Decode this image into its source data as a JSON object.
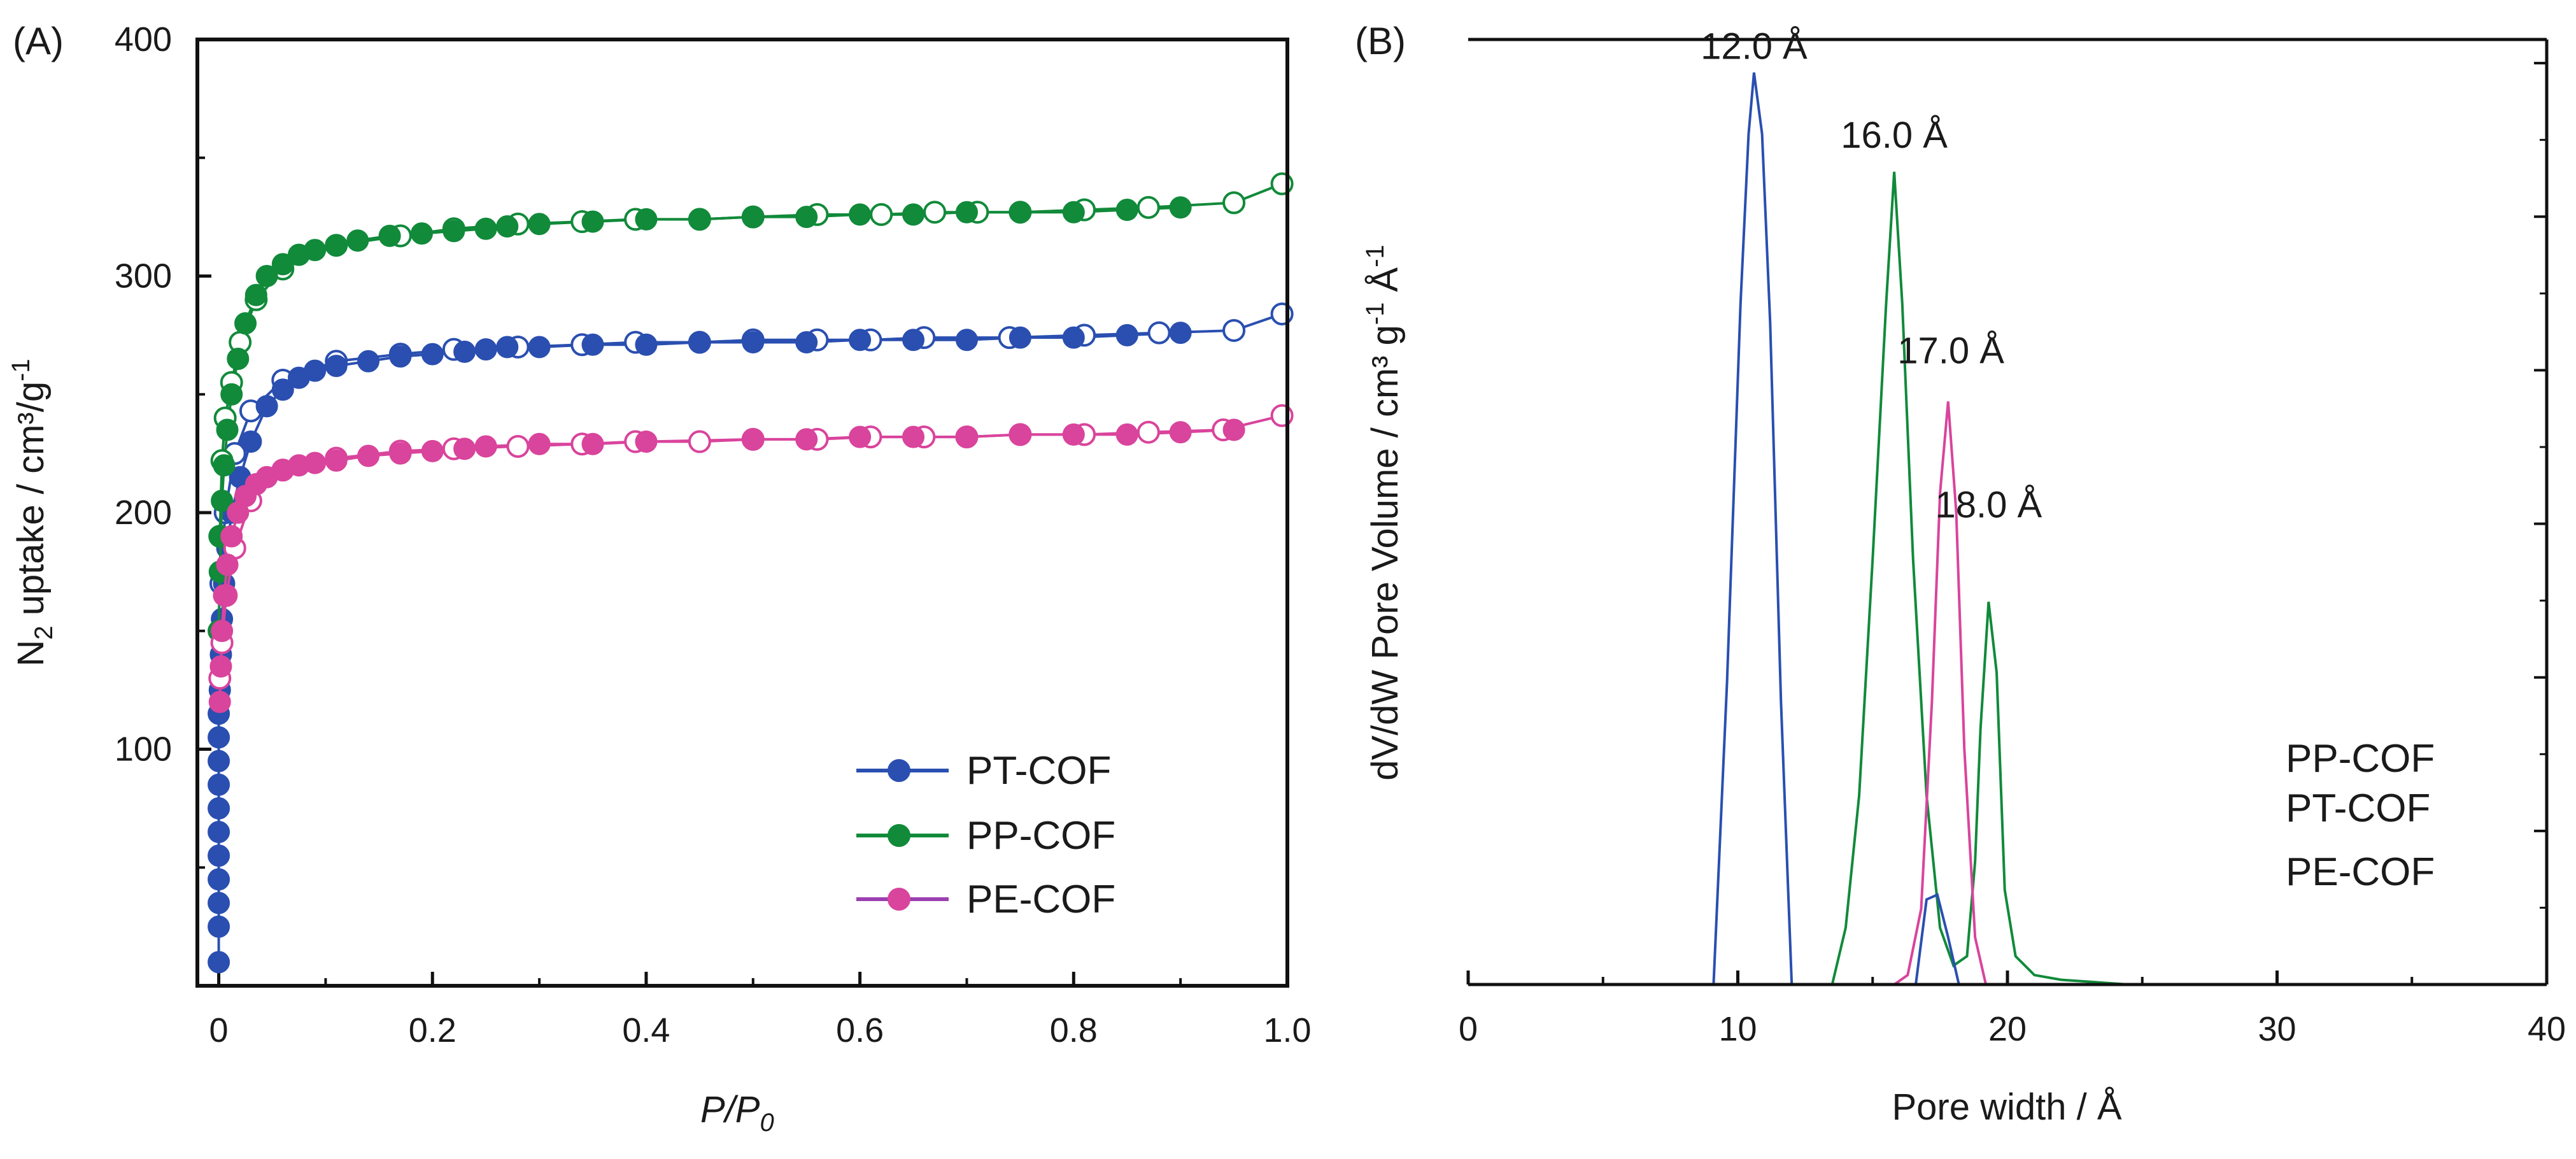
{
  "chart_data": [
    {
      "panel_label": "(A)",
      "type": "scatter",
      "xlabel": {
        "main": "P/P",
        "sub": "0"
      },
      "ylabel": {
        "main": "N",
        "sub": "2",
        "rest": " uptake / cm³/g",
        "sup": "-1"
      },
      "xlim": [
        -0.02,
        1.0
      ],
      "ylim": [
        0,
        400
      ],
      "xticks": [
        0,
        0.2,
        0.4,
        0.6,
        0.8,
        1.0
      ],
      "xtick_labels": [
        "0",
        "0.2",
        "0.4",
        "0.6",
        "0.8",
        "1.0"
      ],
      "yticks": [
        100,
        200,
        300,
        400
      ],
      "ytick_labels": [
        "100",
        "200",
        "300",
        "400"
      ],
      "legend_position": "bottom-right",
      "series": [
        {
          "name": "PT-COF",
          "color": "#2a4fb0",
          "adsorption": {
            "x": [
              0.0,
              0.0,
              0.0,
              0.0,
              0.0,
              0.0,
              0.0,
              0.0,
              0.0,
              0.0,
              0.0,
              0.001,
              0.002,
              0.003,
              0.005,
              0.008,
              0.012,
              0.02,
              0.03,
              0.045,
              0.06,
              0.075,
              0.09,
              0.11,
              0.14,
              0.17,
              0.2,
              0.23,
              0.25,
              0.27,
              0.3,
              0.35,
              0.4,
              0.45,
              0.5,
              0.55,
              0.6,
              0.65,
              0.7,
              0.75,
              0.8,
              0.85,
              0.9
            ],
            "y": [
              10,
              25,
              35,
              45,
              55,
              65,
              75,
              85,
              95,
              105,
              115,
              125,
              140,
              155,
              170,
              185,
              200,
              215,
              230,
              245,
              252,
              257,
              260,
              262,
              264,
              266,
              267,
              268,
              269,
              270,
              270,
              271,
              271,
              272,
              272,
              272,
              273,
              273,
              273,
              274,
              274,
              275,
              276
            ]
          },
          "desorption": {
            "x": [
              0.995,
              0.95,
              0.88,
              0.81,
              0.74,
              0.66,
              0.61,
              0.56,
              0.5,
              0.45,
              0.39,
              0.34,
              0.28,
              0.22,
              0.17,
              0.11,
              0.06,
              0.03,
              0.015,
              0.006,
              0.002
            ],
            "y": [
              284,
              277,
              276,
              275,
              274,
              274,
              273,
              273,
              273,
              272,
              272,
              271,
              270,
              269,
              267,
              264,
              256,
              243,
              225,
              200,
              170
            ]
          }
        },
        {
          "name": "PP-COF",
          "color": "#118a3a",
          "adsorption": {
            "x": [
              0.0,
              0.001,
              0.002,
              0.003,
              0.005,
              0.008,
              0.012,
              0.018,
              0.025,
              0.035,
              0.045,
              0.06,
              0.075,
              0.09,
              0.11,
              0.13,
              0.16,
              0.19,
              0.22,
              0.25,
              0.27,
              0.3,
              0.35,
              0.4,
              0.45,
              0.5,
              0.55,
              0.6,
              0.65,
              0.7,
              0.75,
              0.8,
              0.85,
              0.9
            ],
            "y": [
              150,
              175,
              190,
              205,
              220,
              235,
              250,
              265,
              280,
              292,
              300,
              305,
              309,
              311,
              313,
              315,
              317,
              318,
              319,
              320,
              321,
              322,
              323,
              324,
              324,
              325,
              325,
              326,
              326,
              327,
              327,
              327,
              328,
              329
            ]
          },
          "desorption": {
            "x": [
              0.995,
              0.95,
              0.87,
              0.81,
              0.75,
              0.71,
              0.67,
              0.62,
              0.56,
              0.5,
              0.45,
              0.39,
              0.34,
              0.28,
              0.22,
              0.17,
              0.11,
              0.06,
              0.035,
              0.02,
              0.012,
              0.006,
              0.003,
              0.001
            ],
            "y": [
              339,
              331,
              329,
              328,
              327,
              327,
              327,
              326,
              326,
              325,
              324,
              324,
              323,
              322,
              320,
              317,
              313,
              303,
              290,
              272,
              255,
              240,
              222,
              190
            ]
          }
        },
        {
          "name": "PE-COF",
          "color": "#d9449c",
          "adsorption": {
            "x": [
              0.001,
              0.002,
              0.003,
              0.005,
              0.008,
              0.012,
              0.018,
              0.025,
              0.035,
              0.045,
              0.06,
              0.075,
              0.09,
              0.11,
              0.14,
              0.17,
              0.2,
              0.23,
              0.25,
              0.3,
              0.35,
              0.4,
              0.5,
              0.55,
              0.6,
              0.65,
              0.7,
              0.75,
              0.8,
              0.85,
              0.9,
              0.95
            ],
            "y": [
              120,
              135,
              150,
              165,
              178,
              190,
              200,
              207,
              212,
              215,
              218,
              220,
              221,
              222,
              224,
              225,
              226,
              227,
              228,
              229,
              229,
              230,
              231,
              231,
              232,
              232,
              232,
              233,
              233,
              233,
              234,
              235
            ]
          },
          "desorption": {
            "x": [
              0.995,
              0.94,
              0.87,
              0.81,
              0.75,
              0.7,
              0.66,
              0.61,
              0.56,
              0.5,
              0.45,
              0.39,
              0.34,
              0.28,
              0.22,
              0.17,
              0.11,
              0.06,
              0.03,
              0.015,
              0.007,
              0.003,
              0.001
            ],
            "y": [
              241,
              235,
              234,
              233,
              233,
              232,
              232,
              232,
              231,
              231,
              230,
              230,
              229,
              228,
              227,
              226,
              223,
              218,
              205,
              185,
              165,
              145,
              130
            ]
          }
        }
      ]
    },
    {
      "panel_label": "(B)",
      "type": "line",
      "xlabel": "Pore width / Å",
      "ylabel": {
        "main": "dV/dW Pore Volume / cm³ g",
        "sup1": "-1",
        "mid": " Å",
        "sup2": "-1"
      },
      "xlim": [
        0,
        40
      ],
      "ylim": [
        0,
        1
      ],
      "xticks": [
        0,
        10,
        20,
        30,
        40
      ],
      "xtick_labels": [
        "0",
        "10",
        "20",
        "30",
        "40"
      ],
      "legend_position": "right",
      "annotations": [
        {
          "text": "12.0 Å",
          "x": 10.6,
          "y": 0.97
        },
        {
          "text": "16.0 Å",
          "x": 15.8,
          "y": 0.876
        },
        {
          "text": "17.0 Å",
          "x": 17.9,
          "y": 0.648
        },
        {
          "text": "18.0 Å",
          "x": 19.3,
          "y": 0.485
        }
      ],
      "series": [
        {
          "name": "PP-COF",
          "color": "#118a3a",
          "x": [
            13.5,
            14.0,
            14.5,
            15.0,
            15.5,
            15.8,
            16.1,
            16.5,
            17.0,
            17.5,
            18.0,
            18.5,
            18.8,
            19.0,
            19.3,
            19.6,
            19.9,
            20.3,
            21.0,
            22.0,
            23.0,
            24.5
          ],
          "y": [
            0.0,
            0.06,
            0.2,
            0.45,
            0.72,
            0.86,
            0.72,
            0.45,
            0.2,
            0.06,
            0.02,
            0.03,
            0.13,
            0.27,
            0.405,
            0.33,
            0.1,
            0.03,
            0.01,
            0.005,
            0.003,
            0.0
          ]
        },
        {
          "name": "PT-COF",
          "color": "#2a4fb0",
          "x": [
            9.1,
            9.6,
            10.1,
            10.4,
            10.6,
            10.9,
            11.2,
            11.6,
            12.0,
            16.6,
            17.0,
            17.4,
            17.8,
            18.2
          ],
          "y": [
            0.0,
            0.32,
            0.72,
            0.9,
            0.965,
            0.9,
            0.7,
            0.3,
            0.0,
            0.0,
            0.09,
            0.095,
            0.05,
            0.0
          ]
        },
        {
          "name": "PE-COF",
          "color": "#d9449c",
          "x": [
            15.8,
            16.3,
            16.8,
            17.2,
            17.5,
            17.8,
            18.1,
            18.4,
            18.8,
            19.2
          ],
          "y": [
            0.0,
            0.01,
            0.08,
            0.3,
            0.52,
            0.617,
            0.5,
            0.25,
            0.05,
            0.0
          ]
        }
      ]
    }
  ]
}
